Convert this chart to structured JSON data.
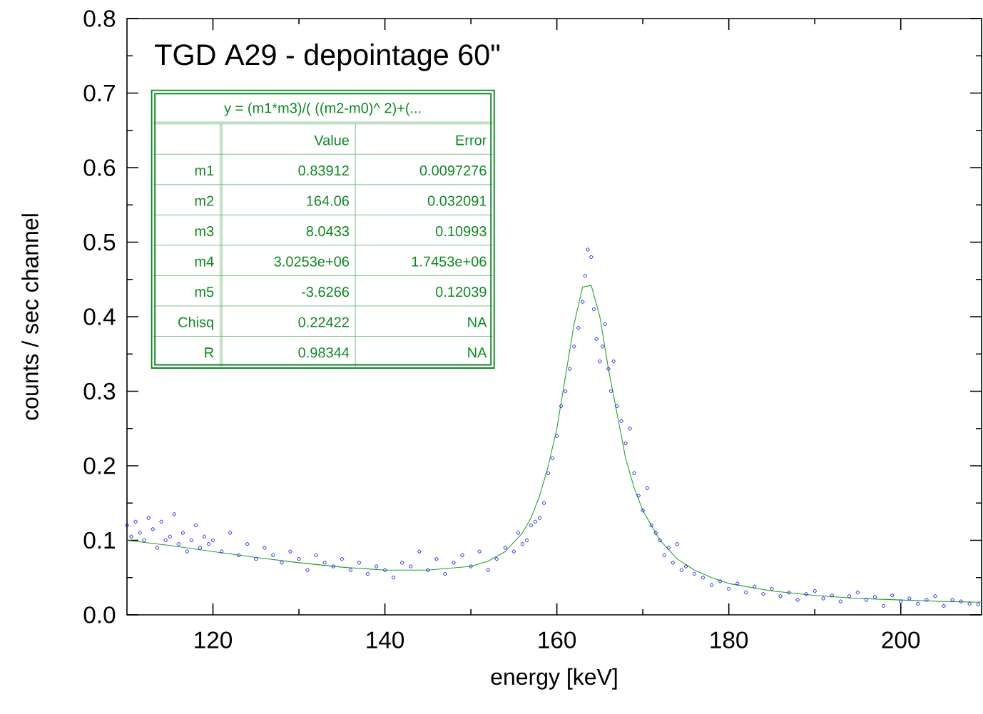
{
  "chart_data": {
    "type": "scatter",
    "title": "TGD A29 - depointage 60\"",
    "xlabel": "energy [keV]",
    "ylabel": "counts / sec channel",
    "xlim": [
      110,
      209.4
    ],
    "xticks": [
      120,
      140,
      160,
      180,
      200
    ],
    "ylim": [
      0,
      0.8
    ],
    "yticks": [
      {
        "value": 0,
        "label": "0.0"
      },
      0.1,
      0.2,
      0.3,
      0.4,
      0.5,
      0.6,
      0.7,
      0.8
    ],
    "grid": false,
    "marker": "circle",
    "tick_labels": "xy",
    "series": [
      {
        "color": "#0000ff",
        "x": [
          110,
          110.5,
          111,
          111.5,
          112,
          112.5,
          113,
          113.5,
          114,
          114.5,
          115,
          115.5,
          116,
          116.5,
          117,
          117.5,
          118,
          118.5,
          119,
          119.5,
          120,
          121,
          122,
          123,
          124,
          125,
          126,
          127,
          128,
          129,
          130,
          131,
          132,
          133,
          134,
          135,
          136,
          137,
          138,
          139,
          140,
          141,
          142,
          143,
          144,
          145,
          146,
          147,
          148,
          149,
          150,
          151,
          152,
          153,
          154,
          155,
          155.5,
          156,
          156.5,
          157,
          157.5,
          158,
          158.5,
          159,
          159.5,
          160,
          160.5,
          161,
          161.5,
          162,
          162.5,
          163,
          163.3,
          163.6,
          164,
          164.3,
          164.6,
          165,
          165.3,
          165.6,
          166,
          166.3,
          166.6,
          167,
          167.5,
          168,
          168.5,
          169,
          169.5,
          170,
          170.5,
          171,
          171.5,
          172,
          172.5,
          173,
          173.5,
          174,
          174.5,
          175,
          176,
          177,
          178,
          179,
          180,
          181,
          182,
          183,
          184,
          185,
          186,
          187,
          188,
          189,
          190,
          191,
          192,
          193,
          194,
          195,
          196,
          197,
          198,
          199,
          200,
          201,
          202,
          203,
          204,
          205,
          206,
          207,
          208,
          209
        ],
        "values": [
          0.12,
          0.105,
          0.125,
          0.11,
          0.1,
          0.13,
          0.115,
          0.09,
          0.125,
          0.1,
          0.105,
          0.135,
          0.095,
          0.11,
          0.085,
          0.1,
          0.12,
          0.09,
          0.105,
          0.095,
          0.1,
          0.085,
          0.11,
          0.08,
          0.095,
          0.075,
          0.09,
          0.08,
          0.07,
          0.085,
          0.075,
          0.06,
          0.08,
          0.07,
          0.065,
          0.075,
          0.06,
          0.07,
          0.055,
          0.065,
          0.06,
          0.05,
          0.07,
          0.065,
          0.085,
          0.06,
          0.075,
          0.055,
          0.07,
          0.08,
          0.065,
          0.085,
          0.06,
          0.075,
          0.09,
          0.085,
          0.11,
          0.095,
          0.1,
          0.12,
          0.125,
          0.13,
          0.15,
          0.19,
          0.21,
          0.24,
          0.28,
          0.3,
          0.33,
          0.36,
          0.385,
          0.42,
          0.455,
          0.49,
          0.48,
          0.41,
          0.37,
          0.34,
          0.36,
          0.39,
          0.33,
          0.3,
          0.34,
          0.28,
          0.26,
          0.23,
          0.25,
          0.19,
          0.16,
          0.14,
          0.17,
          0.12,
          0.11,
          0.1,
          0.08,
          0.09,
          0.07,
          0.095,
          0.06,
          0.065,
          0.055,
          0.05,
          0.04,
          0.045,
          0.035,
          0.042,
          0.03,
          0.038,
          0.028,
          0.035,
          0.025,
          0.03,
          0.02,
          0.028,
          0.032,
          0.022,
          0.026,
          0.018,
          0.025,
          0.03,
          0.02,
          0.024,
          0.012,
          0.026,
          0.018,
          0.022,
          0.015,
          0.02,
          0.025,
          0.012,
          0.02,
          0.018,
          0.015,
          0.014
        ]
      },
      {
        "type": "line",
        "color": "#22a022",
        "marker": "none",
        "x": [
          110,
          115,
          120,
          125,
          130,
          135,
          140,
          145,
          150,
          152,
          154,
          156,
          157,
          158,
          159,
          160,
          161,
          162,
          163,
          164,
          165,
          166,
          167,
          168,
          169,
          170,
          172,
          174,
          176,
          178,
          180,
          185,
          190,
          195,
          200,
          205,
          209.4
        ],
        "values": [
          0.1,
          0.093,
          0.085,
          0.077,
          0.07,
          0.064,
          0.06,
          0.06,
          0.065,
          0.072,
          0.085,
          0.11,
          0.13,
          0.16,
          0.2,
          0.25,
          0.32,
          0.39,
          0.44,
          0.442,
          0.4,
          0.33,
          0.27,
          0.21,
          0.17,
          0.14,
          0.1,
          0.075,
          0.06,
          0.05,
          0.042,
          0.032,
          0.026,
          0.022,
          0.02,
          0.018,
          0.017
        ]
      }
    ],
    "annotations": [
      "y  =  (m1*m3)/(  ((m2-m0)^  2)+(...",
      "Value",
      "Error",
      "m1",
      "0.83912",
      "0.0097276",
      "m2",
      "164.06",
      "0.032091",
      "m3",
      "8.0433",
      "0.10993",
      "m4",
      "3.0253e+06",
      "1.7453e+06",
      "m5",
      "-3.6266",
      "0.12039",
      "Chisq",
      "0.22422",
      "NA",
      "R",
      "0.98344",
      "NA"
    ]
  }
}
